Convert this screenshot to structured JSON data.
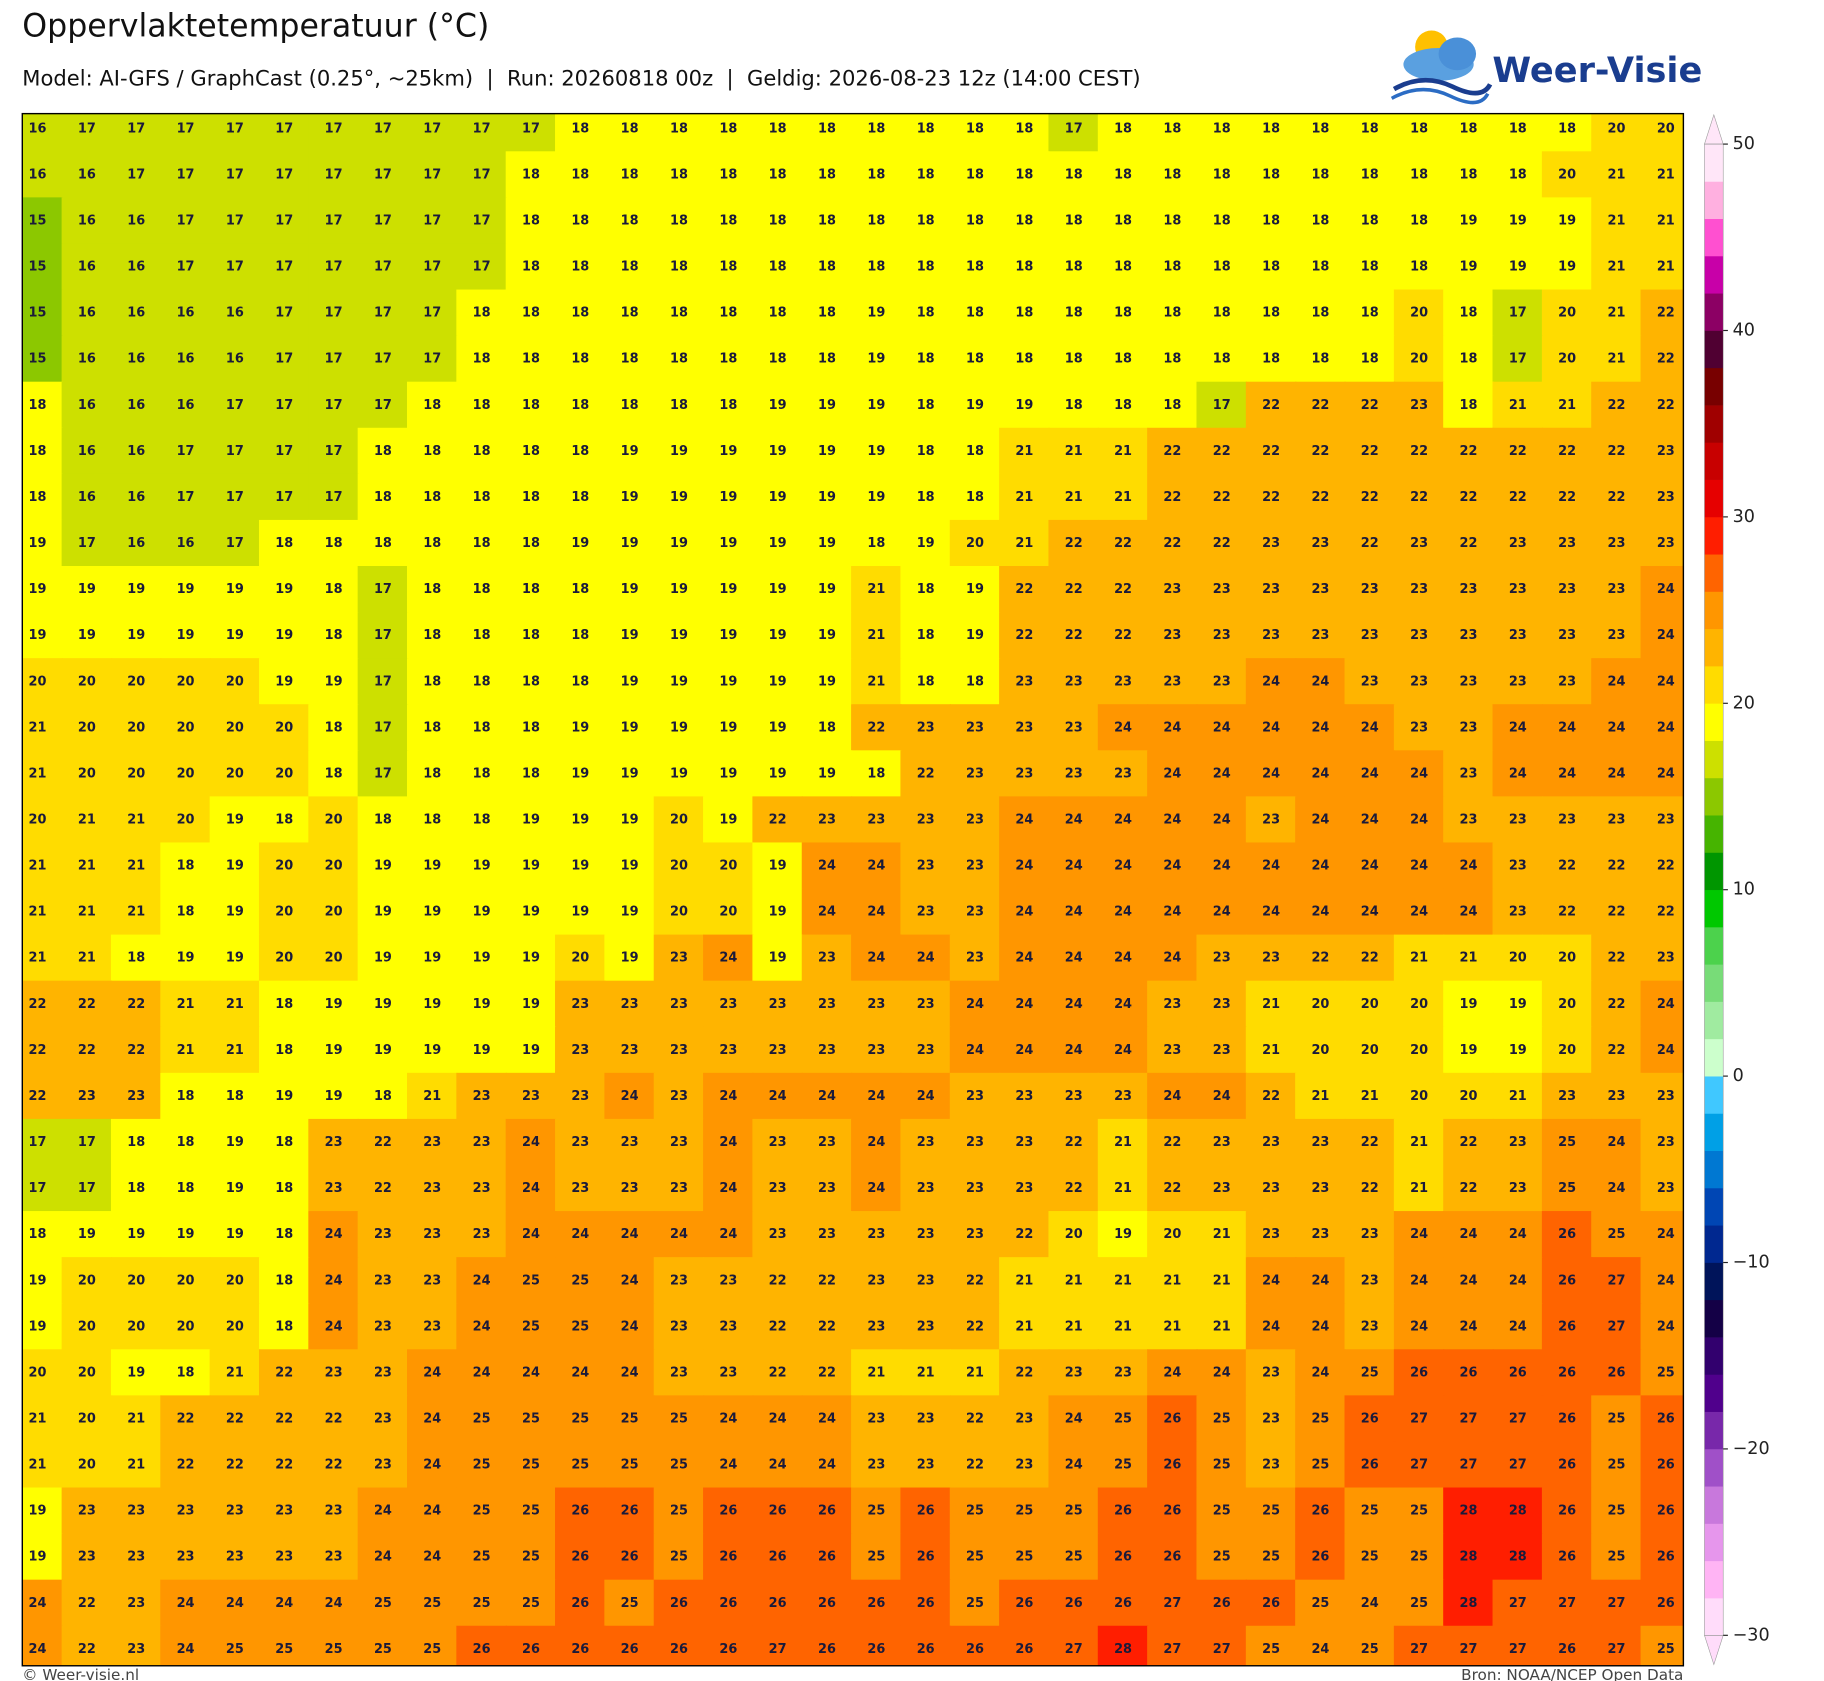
{
  "header": {
    "title": "Oppervlaktetemperatuur (°C)",
    "subtitle": "Model: AI-GFS / GraphCast (0.25°, ~25km)  |  Run: 20260818 00z  |  Geldig: 2026-08-23 12z (14:00 CEST)",
    "logo": "Weer-Visie"
  },
  "map": {
    "grid": [
      [
        16,
        17,
        17,
        17,
        17,
        17,
        17,
        17,
        17,
        17,
        17,
        18,
        18,
        18,
        18,
        18,
        18,
        18,
        18,
        18,
        18,
        17,
        18,
        18,
        18,
        18,
        18,
        18,
        18,
        18,
        18,
        18,
        20,
        20
      ],
      [
        16,
        16,
        17,
        17,
        17,
        17,
        17,
        17,
        17,
        17,
        18,
        18,
        18,
        18,
        18,
        18,
        18,
        18,
        18,
        18,
        18,
        18,
        18,
        18,
        18,
        18,
        18,
        18,
        18,
        18,
        18,
        20,
        21,
        21
      ],
      [
        15,
        16,
        16,
        17,
        17,
        17,
        17,
        17,
        17,
        17,
        18,
        18,
        18,
        18,
        18,
        18,
        18,
        18,
        18,
        18,
        18,
        18,
        18,
        18,
        18,
        18,
        18,
        18,
        18,
        19,
        19,
        19,
        21,
        21
      ],
      [
        15,
        16,
        16,
        17,
        17,
        17,
        17,
        17,
        17,
        17,
        18,
        18,
        18,
        18,
        18,
        18,
        18,
        18,
        18,
        18,
        18,
        18,
        18,
        18,
        18,
        18,
        18,
        18,
        18,
        19,
        19,
        19,
        21,
        21
      ],
      [
        15,
        16,
        16,
        16,
        16,
        17,
        17,
        17,
        17,
        18,
        18,
        18,
        18,
        18,
        18,
        18,
        18,
        19,
        18,
        18,
        18,
        18,
        18,
        18,
        18,
        18,
        18,
        18,
        20,
        18,
        17,
        20,
        21,
        22
      ],
      [
        15,
        16,
        16,
        16,
        16,
        17,
        17,
        17,
        17,
        18,
        18,
        18,
        18,
        18,
        18,
        18,
        18,
        19,
        18,
        18,
        18,
        18,
        18,
        18,
        18,
        18,
        18,
        18,
        20,
        18,
        17,
        20,
        21,
        22
      ],
      [
        18,
        16,
        16,
        16,
        17,
        17,
        17,
        17,
        18,
        18,
        18,
        18,
        18,
        18,
        18,
        19,
        19,
        19,
        18,
        19,
        19,
        18,
        18,
        18,
        17,
        22,
        22,
        22,
        23,
        18,
        21,
        21,
        22,
        22
      ],
      [
        18,
        16,
        16,
        17,
        17,
        17,
        17,
        18,
        18,
        18,
        18,
        18,
        19,
        19,
        19,
        19,
        19,
        19,
        18,
        18,
        21,
        21,
        21,
        22,
        22,
        22,
        22,
        22,
        22,
        22,
        22,
        22,
        22,
        23
      ],
      [
        18,
        16,
        16,
        17,
        17,
        17,
        17,
        18,
        18,
        18,
        18,
        18,
        19,
        19,
        19,
        19,
        19,
        19,
        18,
        18,
        21,
        21,
        21,
        22,
        22,
        22,
        22,
        22,
        22,
        22,
        22,
        22,
        22,
        23
      ],
      [
        19,
        17,
        16,
        16,
        17,
        18,
        18,
        18,
        18,
        18,
        18,
        19,
        19,
        19,
        19,
        19,
        19,
        18,
        19,
        20,
        21,
        22,
        22,
        22,
        22,
        23,
        23,
        22,
        23,
        22,
        23,
        23,
        23,
        23
      ],
      [
        19,
        19,
        19,
        19,
        19,
        19,
        18,
        17,
        18,
        18,
        18,
        18,
        19,
        19,
        19,
        19,
        19,
        21,
        18,
        19,
        22,
        22,
        22,
        23,
        23,
        23,
        23,
        23,
        23,
        23,
        23,
        23,
        23,
        24
      ],
      [
        19,
        19,
        19,
        19,
        19,
        19,
        18,
        17,
        18,
        18,
        18,
        18,
        19,
        19,
        19,
        19,
        19,
        21,
        18,
        19,
        22,
        22,
        22,
        23,
        23,
        23,
        23,
        23,
        23,
        23,
        23,
        23,
        23,
        24
      ],
      [
        20,
        20,
        20,
        20,
        20,
        19,
        19,
        17,
        18,
        18,
        18,
        18,
        19,
        19,
        19,
        19,
        19,
        21,
        18,
        18,
        23,
        23,
        23,
        23,
        23,
        24,
        24,
        23,
        23,
        23,
        23,
        23,
        24,
        24
      ],
      [
        21,
        20,
        20,
        20,
        20,
        20,
        18,
        17,
        18,
        18,
        18,
        19,
        19,
        19,
        19,
        19,
        18,
        22,
        23,
        23,
        23,
        23,
        24,
        24,
        24,
        24,
        24,
        24,
        23,
        23,
        24,
        24,
        24,
        24
      ],
      [
        21,
        20,
        20,
        20,
        20,
        20,
        18,
        17,
        18,
        18,
        18,
        19,
        19,
        19,
        19,
        19,
        19,
        18,
        22,
        23,
        23,
        23,
        23,
        24,
        24,
        24,
        24,
        24,
        24,
        23,
        24,
        24,
        24,
        24
      ],
      [
        20,
        21,
        21,
        20,
        19,
        18,
        20,
        18,
        18,
        18,
        19,
        19,
        19,
        20,
        19,
        22,
        23,
        23,
        23,
        23,
        24,
        24,
        24,
        24,
        24,
        23,
        24,
        24,
        24,
        23,
        23,
        23,
        23,
        23
      ],
      [
        21,
        21,
        21,
        18,
        19,
        20,
        20,
        19,
        19,
        19,
        19,
        19,
        19,
        20,
        20,
        19,
        24,
        24,
        23,
        23,
        24,
        24,
        24,
        24,
        24,
        24,
        24,
        24,
        24,
        24,
        23,
        22,
        22,
        22
      ],
      [
        21,
        21,
        21,
        18,
        19,
        20,
        20,
        19,
        19,
        19,
        19,
        19,
        19,
        20,
        20,
        19,
        24,
        24,
        23,
        23,
        24,
        24,
        24,
        24,
        24,
        24,
        24,
        24,
        24,
        24,
        23,
        22,
        22,
        22
      ],
      [
        21,
        21,
        18,
        19,
        19,
        20,
        20,
        19,
        19,
        19,
        19,
        20,
        19,
        23,
        24,
        19,
        23,
        24,
        24,
        23,
        24,
        24,
        24,
        24,
        23,
        23,
        22,
        22,
        21,
        21,
        20,
        20,
        22,
        23
      ],
      [
        22,
        22,
        22,
        21,
        21,
        18,
        19,
        19,
        19,
        19,
        19,
        23,
        23,
        23,
        23,
        23,
        23,
        23,
        23,
        24,
        24,
        24,
        24,
        23,
        23,
        21,
        20,
        20,
        20,
        19,
        19,
        20,
        22,
        24
      ],
      [
        22,
        22,
        22,
        21,
        21,
        18,
        19,
        19,
        19,
        19,
        19,
        23,
        23,
        23,
        23,
        23,
        23,
        23,
        23,
        24,
        24,
        24,
        24,
        23,
        23,
        21,
        20,
        20,
        20,
        19,
        19,
        20,
        22,
        24
      ],
      [
        22,
        23,
        23,
        18,
        18,
        19,
        19,
        18,
        21,
        23,
        23,
        23,
        24,
        23,
        24,
        24,
        24,
        24,
        24,
        23,
        23,
        23,
        23,
        24,
        24,
        22,
        21,
        21,
        20,
        20,
        21,
        23,
        23,
        23
      ],
      [
        17,
        17,
        18,
        18,
        19,
        18,
        23,
        22,
        23,
        23,
        24,
        23,
        23,
        23,
        24,
        23,
        23,
        24,
        23,
        23,
        23,
        22,
        21,
        22,
        23,
        23,
        23,
        22,
        21,
        22,
        23,
        25,
        24,
        23
      ],
      [
        17,
        17,
        18,
        18,
        19,
        18,
        23,
        22,
        23,
        23,
        24,
        23,
        23,
        23,
        24,
        23,
        23,
        24,
        23,
        23,
        23,
        22,
        21,
        22,
        23,
        23,
        23,
        22,
        21,
        22,
        23,
        25,
        24,
        23
      ],
      [
        18,
        19,
        19,
        19,
        19,
        18,
        24,
        23,
        23,
        23,
        24,
        24,
        24,
        24,
        24,
        23,
        23,
        23,
        23,
        23,
        22,
        20,
        19,
        20,
        21,
        23,
        23,
        23,
        24,
        24,
        24,
        26,
        25,
        24
      ],
      [
        19,
        20,
        20,
        20,
        20,
        18,
        24,
        23,
        23,
        24,
        25,
        25,
        24,
        23,
        23,
        22,
        22,
        23,
        23,
        22,
        21,
        21,
        21,
        21,
        21,
        24,
        24,
        23,
        24,
        24,
        24,
        26,
        27,
        24
      ],
      [
        19,
        20,
        20,
        20,
        20,
        18,
        24,
        23,
        23,
        24,
        25,
        25,
        24,
        23,
        23,
        22,
        22,
        23,
        23,
        22,
        21,
        21,
        21,
        21,
        21,
        24,
        24,
        23,
        24,
        24,
        24,
        26,
        27,
        24
      ],
      [
        20,
        20,
        19,
        18,
        21,
        22,
        23,
        23,
        24,
        24,
        24,
        24,
        24,
        23,
        23,
        22,
        22,
        21,
        21,
        21,
        22,
        23,
        23,
        24,
        24,
        23,
        24,
        25,
        26,
        26,
        26,
        26,
        26,
        25
      ],
      [
        21,
        20,
        21,
        22,
        22,
        22,
        22,
        23,
        24,
        25,
        25,
        25,
        25,
        25,
        24,
        24,
        24,
        23,
        23,
        22,
        23,
        24,
        25,
        26,
        25,
        23,
        25,
        26,
        27,
        27,
        27,
        26,
        25,
        26
      ],
      [
        21,
        20,
        21,
        22,
        22,
        22,
        22,
        23,
        24,
        25,
        25,
        25,
        25,
        25,
        24,
        24,
        24,
        23,
        23,
        22,
        23,
        24,
        25,
        26,
        25,
        23,
        25,
        26,
        27,
        27,
        27,
        26,
        25,
        26
      ],
      [
        19,
        23,
        23,
        23,
        23,
        23,
        23,
        24,
        24,
        25,
        25,
        26,
        26,
        25,
        26,
        26,
        26,
        25,
        26,
        25,
        25,
        25,
        26,
        26,
        25,
        25,
        26,
        25,
        25,
        28,
        28,
        26,
        25,
        26
      ],
      [
        19,
        23,
        23,
        23,
        23,
        23,
        23,
        24,
        24,
        25,
        25,
        26,
        26,
        25,
        26,
        26,
        26,
        25,
        26,
        25,
        25,
        25,
        26,
        26,
        25,
        25,
        26,
        25,
        25,
        28,
        28,
        26,
        25,
        26
      ],
      [
        24,
        22,
        23,
        24,
        24,
        24,
        24,
        25,
        25,
        25,
        25,
        26,
        25,
        26,
        26,
        26,
        26,
        26,
        26,
        25,
        26,
        26,
        26,
        27,
        26,
        26,
        25,
        24,
        25,
        28,
        27,
        27,
        27,
        26
      ],
      [
        24,
        22,
        23,
        24,
        25,
        25,
        25,
        25,
        25,
        26,
        26,
        26,
        26,
        26,
        26,
        27,
        26,
        26,
        26,
        26,
        26,
        27,
        28,
        27,
        27,
        25,
        24,
        25,
        27,
        27,
        27,
        26,
        27,
        25
      ]
    ],
    "colorbar": {
      "lim": [
        -30,
        50
      ],
      "ticks": [
        50,
        40,
        30,
        20,
        10,
        0,
        {
          "value": -10,
          "label": "−10"
        },
        {
          "value": -20,
          "label": "−20"
        },
        {
          "value": -30,
          "label": "−30"
        }
      ],
      "colors": [
        "#ffdcfa",
        "#ffb4f4",
        "#e696ec",
        "#c878dc",
        "#a050c8",
        "#7828aa",
        "#50008c",
        "#32006e",
        "#140046",
        "#00145a",
        "#002890",
        "#0046b4",
        "#0078d2",
        "#00a0e6",
        "#40c8ff",
        "#ccffcc",
        "#a0eba0",
        "#78dc78",
        "#4cd24c",
        "#00c800",
        "#009600",
        "#46b400",
        "#8cc800",
        "#cde000",
        "#ffff00",
        "#ffdc00",
        "#ffb400",
        "#ff9600",
        "#ff6400",
        "#ff1e00",
        "#e60000",
        "#c80000",
        "#a00000",
        "#780000",
        "#500032",
        "#8c0064",
        "#c800a8",
        "#ff50d0",
        "#ffb0e0",
        "#ffe6f8"
      ]
    }
  },
  "footer": {
    "left": "© Weer-visie.nl",
    "right": "Bron: NOAA/NCEP Open Data"
  }
}
